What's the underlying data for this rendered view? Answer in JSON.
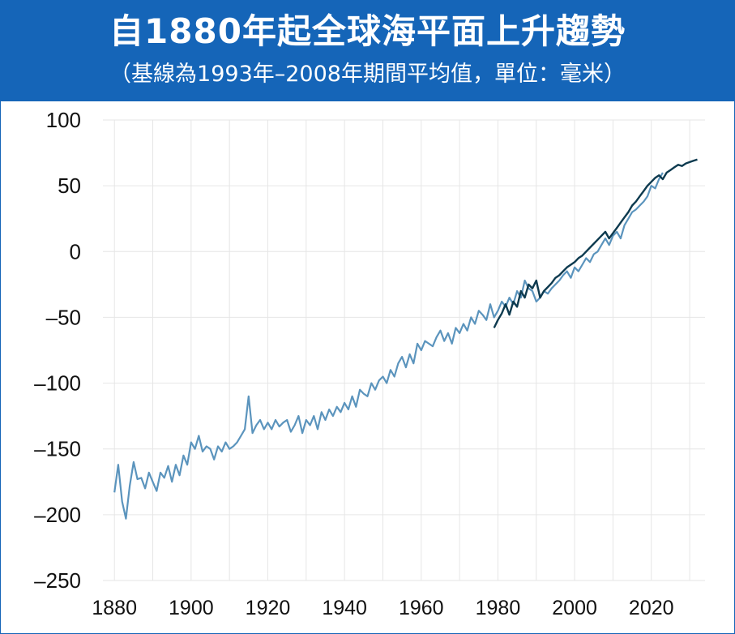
{
  "chart_data": {
    "type": "line",
    "title": "自1880年起全球海平面上升趨勢",
    "subtitle": "（基線為1993年–2008年期間平均值，單位：毫米）",
    "xlabel": "",
    "ylabel": "",
    "xlim": [
      1877,
      2034
    ],
    "ylim": [
      -250,
      100
    ],
    "x_ticks": [
      1880,
      1900,
      1920,
      1940,
      1960,
      1980,
      2000,
      2020
    ],
    "x_tick_labels": [
      "1880",
      "1900",
      "1920",
      "1940",
      "1960",
      "1980",
      "2000",
      "2020"
    ],
    "y_ticks": [
      100,
      50,
      0,
      -50,
      -100,
      -150,
      -200,
      -250
    ],
    "y_tick_labels": [
      "100",
      "50",
      "0",
      "–50",
      "–100",
      "–150",
      "–200",
      "–250"
    ],
    "grid": true,
    "colors": {
      "historical": "#5b94bd",
      "satellite": "#0d3a4f",
      "header": "#1565b8",
      "grid": "#e6e6e6"
    },
    "series": [
      {
        "x": [
          1880,
          1881,
          1882,
          1883,
          1884,
          1885,
          1886,
          1887,
          1888,
          1889,
          1890,
          1891,
          1892,
          1893,
          1894,
          1895,
          1896,
          1897,
          1898,
          1899,
          1900,
          1901,
          1902,
          1903,
          1904,
          1905,
          1906,
          1907,
          1908,
          1909,
          1910,
          1911,
          1912,
          1913,
          1914,
          1915,
          1916,
          1917,
          1918,
          1919,
          1920,
          1921,
          1922,
          1923,
          1924,
          1925,
          1926,
          1927,
          1928,
          1929,
          1930,
          1931,
          1932,
          1933,
          1934,
          1935,
          1936,
          1937,
          1938,
          1939,
          1940,
          1941,
          1942,
          1943,
          1944,
          1945,
          1946,
          1947,
          1948,
          1949,
          1950,
          1951,
          1952,
          1953,
          1954,
          1955,
          1956,
          1957,
          1958,
          1959,
          1960,
          1961,
          1962,
          1963,
          1964,
          1965,
          1966,
          1967,
          1968,
          1969,
          1970,
          1971,
          1972,
          1973,
          1974,
          1975,
          1976,
          1977,
          1978,
          1979,
          1980,
          1981,
          1982,
          1983,
          1984,
          1985,
          1986,
          1987,
          1988,
          1989,
          1990,
          1991,
          1992,
          1993,
          1994,
          1995,
          1996,
          1997,
          1998,
          1999,
          2000,
          2001,
          2002,
          2003,
          2004,
          2005,
          2006,
          2007,
          2008,
          2009,
          2010,
          2011,
          2012,
          2013,
          2014,
          2015,
          2016,
          2017,
          2018,
          2019,
          2020,
          2021,
          2022,
          2023
        ],
        "values": [
          -183,
          -162,
          -190,
          -203,
          -178,
          -160,
          -173,
          -172,
          -180,
          -168,
          -175,
          -182,
          -168,
          -172,
          -163,
          -175,
          -162,
          -170,
          -155,
          -162,
          -145,
          -150,
          -140,
          -152,
          -148,
          -150,
          -158,
          -148,
          -152,
          -145,
          -150,
          -148,
          -145,
          -140,
          -135,
          -110,
          -138,
          -132,
          -128,
          -135,
          -130,
          -135,
          -128,
          -133,
          -130,
          -128,
          -137,
          -132,
          -125,
          -138,
          -128,
          -132,
          -125,
          -135,
          -122,
          -128,
          -120,
          -125,
          -118,
          -122,
          -115,
          -120,
          -110,
          -118,
          -105,
          -108,
          -110,
          -100,
          -105,
          -98,
          -95,
          -100,
          -90,
          -95,
          -85,
          -80,
          -88,
          -78,
          -85,
          -70,
          -75,
          -68,
          -70,
          -72,
          -65,
          -60,
          -68,
          -62,
          -70,
          -58,
          -62,
          -55,
          -60,
          -50,
          -55,
          -45,
          -48,
          -52,
          -40,
          -50,
          -45,
          -38,
          -42,
          -35,
          -40,
          -30,
          -35,
          -22,
          -28,
          -30,
          -38,
          -35,
          -30,
          -32,
          -28,
          -25,
          -22,
          -18,
          -15,
          -20,
          -12,
          -15,
          -10,
          -5,
          -8,
          -2,
          0,
          5,
          10,
          5,
          12,
          15,
          10,
          20,
          25,
          30,
          32,
          35,
          38,
          42,
          50,
          48,
          55,
          60
        ]
      },
      {
        "x": [
          1979,
          1980,
          1981,
          1982,
          1983,
          1984,
          1985,
          1986,
          1987,
          1988,
          1989,
          1990,
          1991,
          1992,
          1993,
          1994,
          1995,
          1996,
          1997,
          1998,
          1999,
          2000,
          2001,
          2002,
          2003,
          2004,
          2005,
          2006,
          2007,
          2008,
          2009,
          2010,
          2011,
          2012,
          2013,
          2014,
          2015,
          2016,
          2017,
          2018,
          2019,
          2020,
          2021,
          2022,
          2023,
          2024,
          2025,
          2026,
          2027,
          2028,
          2029,
          2030,
          2031,
          2032
        ],
        "values": [
          -58,
          -52,
          -47,
          -40,
          -48,
          -38,
          -42,
          -30,
          -35,
          -25,
          -28,
          -22,
          -35,
          -30,
          -27,
          -24,
          -20,
          -18,
          -15,
          -12,
          -10,
          -8,
          -5,
          -3,
          0,
          3,
          6,
          9,
          12,
          15,
          10,
          14,
          18,
          22,
          26,
          30,
          35,
          38,
          42,
          46,
          50,
          53,
          56,
          58,
          55,
          60,
          62,
          64,
          66,
          65,
          67,
          68,
          69,
          70
        ]
      }
    ]
  }
}
